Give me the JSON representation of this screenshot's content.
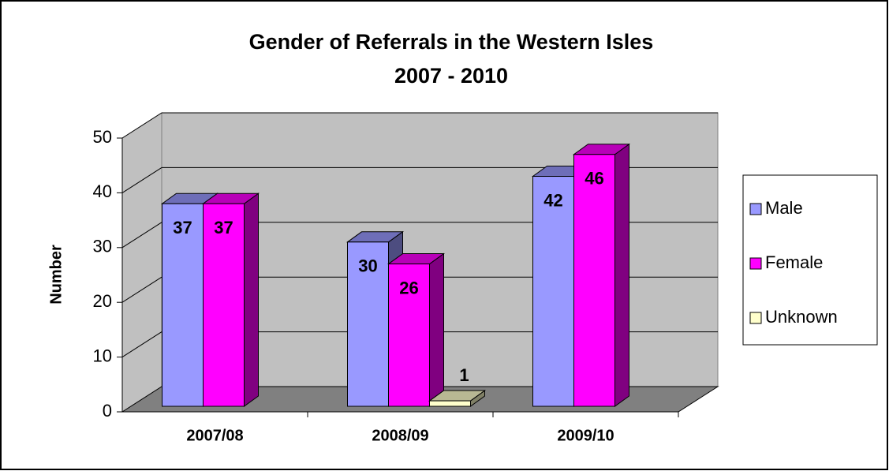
{
  "chart_data": {
    "type": "bar3d",
    "title": "Gender of Referrals in the Western Isles",
    "subtitle": "2007 - 2010",
    "y_label": "Number",
    "categories": [
      "2007/08",
      "2008/09",
      "2009/10"
    ],
    "series": [
      {
        "name": "Male",
        "color": "#9999ff",
        "values": [
          37,
          30,
          42
        ]
      },
      {
        "name": "Female",
        "color": "#ff00ff",
        "values": [
          37,
          26,
          46
        ]
      },
      {
        "name": "Unknown",
        "color": "#ffffcc",
        "values": [
          null,
          1,
          null
        ]
      }
    ],
    "ylim": [
      0,
      50
    ],
    "yticks": [
      0,
      10,
      20,
      30,
      40,
      50
    ],
    "grid": true,
    "legend": "right"
  }
}
